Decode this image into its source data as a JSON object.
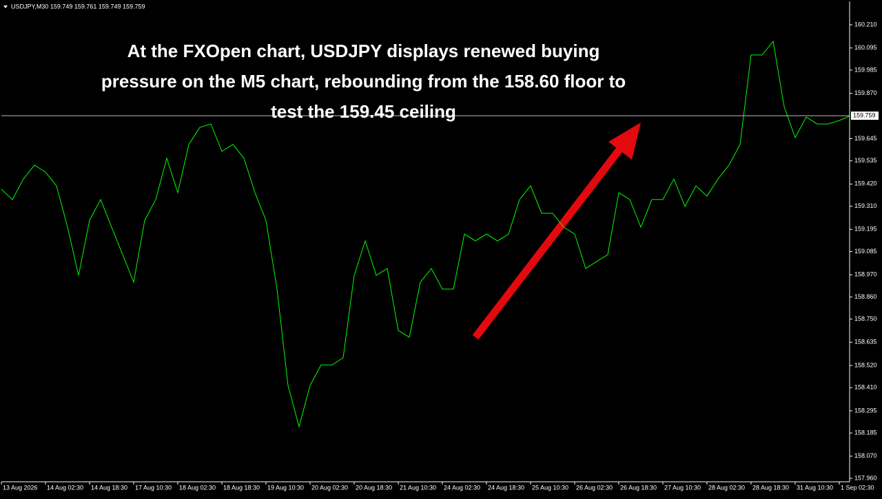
{
  "chart_data": {
    "type": "line",
    "header": "USDJPY,M30 159.749 159.761 159.749 159.759",
    "annotation": [
      "At the FXOpen chart, USDJPY displays renewed buying",
      "pressure on the M5 chart, rebounding from the 158.60 floor to",
      "test the 159.45 ceiling"
    ],
    "categories": [
      "13 Aug 2026",
      null,
      null,
      null,
      "14 Aug 02:30",
      null,
      null,
      null,
      "14 Aug 18:30",
      null,
      null,
      null,
      "17 Aug 10:30",
      null,
      null,
      null,
      "18 Aug 02:30",
      null,
      null,
      null,
      "18 Aug 18:30",
      null,
      null,
      null,
      "19 Aug 10:30",
      null,
      null,
      null,
      "20 Aug 02:30",
      null,
      null,
      null,
      "20 Aug 18:30",
      null,
      null,
      null,
      "21 Aug 10:30",
      null,
      null,
      null,
      "24 Aug 02:30",
      null,
      null,
      null,
      "24 Aug 18:30",
      null,
      null,
      null,
      "25 Aug 10:30",
      null,
      null,
      null,
      "26 Aug 02:30",
      null,
      null,
      null,
      "26 Aug 18:30",
      null,
      null,
      null,
      "27 Aug 10:30",
      null,
      null,
      null,
      "28 Aug 02:30",
      null,
      null,
      null,
      "28 Aug 18:30",
      null,
      null,
      null,
      "31 Aug 10:30",
      null,
      null,
      null,
      "1 Sep 02:30",
      null
    ],
    "series": [
      {
        "name": "USDJPY,M30",
        "color": "#00ff00",
        "values": [
          159.394,
          159.343,
          159.445,
          159.514,
          159.479,
          159.411,
          159.206,
          158.967,
          159.24,
          159.343,
          159.206,
          159.07,
          158.933,
          159.24,
          159.343,
          159.548,
          159.377,
          159.616,
          159.701,
          159.718,
          159.582,
          159.616,
          159.548,
          159.377,
          159.24,
          158.899,
          158.421,
          158.216,
          158.421,
          158.523,
          158.523,
          158.558,
          158.967,
          159.138,
          158.967,
          159.001,
          158.694,
          158.66,
          158.933,
          159.001,
          158.899,
          158.899,
          159.172,
          159.138,
          159.172,
          159.138,
          159.172,
          159.343,
          159.411,
          159.275,
          159.275,
          159.206,
          159.172,
          159.001,
          159.036,
          159.07,
          159.377,
          159.343,
          159.206,
          159.343,
          159.343,
          159.445,
          159.309,
          159.411,
          159.36,
          159.445,
          159.514,
          159.616,
          160.06,
          160.06,
          160.128,
          159.804,
          159.65,
          159.752,
          159.718,
          159.718,
          159.735,
          159.759
        ]
      }
    ],
    "last_price": {
      "value": 159.759,
      "label": "159.759"
    },
    "ylim": [
      157.943,
      160.326
    ],
    "yticks": [
      {
        "value": 160.21,
        "label": "160.210"
      },
      {
        "value": 160.095,
        "label": "160.095"
      },
      {
        "value": 159.985,
        "label": "159.985"
      },
      {
        "value": 159.87,
        "label": "159.870"
      },
      159.645,
      159.535,
      {
        "value": 159.42,
        "label": "159.420"
      },
      {
        "value": 159.31,
        "label": "159.310"
      },
      159.195,
      159.085,
      {
        "value": 158.97,
        "label": "158.970"
      },
      {
        "value": 158.86,
        "label": "158.860"
      },
      {
        "value": 158.75,
        "label": "158.750"
      },
      158.635,
      {
        "value": 158.52,
        "label": "158.520"
      },
      {
        "value": 158.41,
        "label": "158.410"
      },
      158.295,
      158.185,
      {
        "value": 158.07,
        "label": "158.070"
      },
      {
        "value": 157.96,
        "label": "157.960"
      }
    ]
  }
}
